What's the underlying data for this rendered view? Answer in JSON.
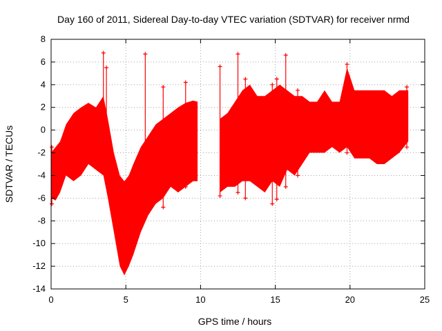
{
  "chart_data": {
    "type": "area",
    "title": "Day 160 of 2011, Sidereal Day-to-day VTEC variation (SDTVAR) for receiver nrmd",
    "xlabel": "GPS time / hours",
    "ylabel": "SDTVAR / TECUs",
    "xlim": [
      0,
      25
    ],
    "ylim": [
      -14,
      8
    ],
    "xticks": [
      0,
      5,
      10,
      15,
      20,
      25
    ],
    "yticks": [
      -14,
      -12,
      -10,
      -8,
      -6,
      -4,
      -2,
      0,
      2,
      4,
      6,
      8
    ],
    "grid": true,
    "series_color": "#ff0000",
    "series": [
      {
        "name": "segment-1",
        "envelope": [
          {
            "x": 0.0,
            "lo": -6.0,
            "hi": -2.0
          },
          {
            "x": 0.3,
            "lo": -6.2,
            "hi": -1.5
          },
          {
            "x": 0.6,
            "lo": -5.5,
            "hi": -1.0
          },
          {
            "x": 1.0,
            "lo": -4.0,
            "hi": 0.5
          },
          {
            "x": 1.5,
            "lo": -4.5,
            "hi": 1.5
          },
          {
            "x": 2.0,
            "lo": -4.0,
            "hi": 2.0
          },
          {
            "x": 2.5,
            "lo": -3.0,
            "hi": 2.4
          },
          {
            "x": 3.0,
            "lo": -3.5,
            "hi": 2.0
          },
          {
            "x": 3.5,
            "lo": -4.0,
            "hi": 3.0
          },
          {
            "x": 3.8,
            "lo": -6.0,
            "hi": 1.0
          },
          {
            "x": 4.2,
            "lo": -9.0,
            "hi": -2.0
          },
          {
            "x": 4.6,
            "lo": -12.0,
            "hi": -4.0
          },
          {
            "x": 4.9,
            "lo": -12.8,
            "hi": -4.5
          },
          {
            "x": 5.2,
            "lo": -12.0,
            "hi": -4.0
          },
          {
            "x": 5.5,
            "lo": -11.0,
            "hi": -3.0
          },
          {
            "x": 6.0,
            "lo": -9.0,
            "hi": -1.5
          },
          {
            "x": 6.5,
            "lo": -7.5,
            "hi": -0.5
          },
          {
            "x": 7.0,
            "lo": -6.5,
            "hi": 0.5
          },
          {
            "x": 7.5,
            "lo": -6.0,
            "hi": 1.0
          },
          {
            "x": 8.0,
            "lo": -5.0,
            "hi": 1.5
          },
          {
            "x": 8.5,
            "lo": -5.5,
            "hi": 2.0
          },
          {
            "x": 9.0,
            "lo": -5.0,
            "hi": 2.4
          },
          {
            "x": 9.5,
            "lo": -4.5,
            "hi": 2.6
          },
          {
            "x": 9.8,
            "lo": -4.5,
            "hi": 2.5
          }
        ]
      },
      {
        "name": "segment-2",
        "envelope": [
          {
            "x": 11.3,
            "lo": -5.5,
            "hi": 1.0
          },
          {
            "x": 11.8,
            "lo": -5.0,
            "hi": 1.5
          },
          {
            "x": 12.3,
            "lo": -5.0,
            "hi": 2.5
          },
          {
            "x": 12.8,
            "lo": -4.5,
            "hi": 3.5
          },
          {
            "x": 13.3,
            "lo": -4.5,
            "hi": 4.0
          },
          {
            "x": 13.8,
            "lo": -5.0,
            "hi": 3.0
          },
          {
            "x": 14.3,
            "lo": -5.5,
            "hi": 3.0
          },
          {
            "x": 14.8,
            "lo": -4.5,
            "hi": 3.5
          },
          {
            "x": 15.3,
            "lo": -5.0,
            "hi": 4.0
          },
          {
            "x": 15.8,
            "lo": -3.5,
            "hi": 3.5
          },
          {
            "x": 16.3,
            "lo": -4.0,
            "hi": 3.0
          },
          {
            "x": 16.8,
            "lo": -3.0,
            "hi": 3.0
          },
          {
            "x": 17.3,
            "lo": -2.0,
            "hi": 2.5
          },
          {
            "x": 17.8,
            "lo": -2.0,
            "hi": 2.5
          },
          {
            "x": 18.3,
            "lo": -2.0,
            "hi": 3.5
          },
          {
            "x": 18.8,
            "lo": -1.5,
            "hi": 2.5
          },
          {
            "x": 19.3,
            "lo": -2.0,
            "hi": 2.5
          },
          {
            "x": 19.8,
            "lo": -1.5,
            "hi": 5.5
          },
          {
            "x": 20.3,
            "lo": -2.5,
            "hi": 3.5
          },
          {
            "x": 20.8,
            "lo": -2.5,
            "hi": 3.5
          },
          {
            "x": 21.3,
            "lo": -2.5,
            "hi": 3.5
          },
          {
            "x": 21.8,
            "lo": -3.0,
            "hi": 3.5
          },
          {
            "x": 22.3,
            "lo": -3.0,
            "hi": 3.5
          },
          {
            "x": 22.8,
            "lo": -2.5,
            "hi": 3.0
          },
          {
            "x": 23.3,
            "lo": -2.0,
            "hi": 3.5
          },
          {
            "x": 23.9,
            "lo": -1.0,
            "hi": 3.5
          }
        ]
      }
    ],
    "spikes": [
      {
        "x": 0.05,
        "lo": -6.5,
        "hi": -1.5
      },
      {
        "x": 3.5,
        "lo": -2.0,
        "hi": 6.8
      },
      {
        "x": 3.7,
        "lo": -2.0,
        "hi": 5.5
      },
      {
        "x": 6.3,
        "lo": -4.0,
        "hi": 6.7
      },
      {
        "x": 7.5,
        "lo": -6.8,
        "hi": 3.8
      },
      {
        "x": 9.0,
        "lo": -5.0,
        "hi": 4.2
      },
      {
        "x": 11.3,
        "lo": -5.8,
        "hi": 5.6
      },
      {
        "x": 12.5,
        "lo": -5.5,
        "hi": 6.7
      },
      {
        "x": 13.0,
        "lo": -6.0,
        "hi": 4.5
      },
      {
        "x": 14.8,
        "lo": -6.5,
        "hi": 4.0
      },
      {
        "x": 15.1,
        "lo": -6.1,
        "hi": 4.5
      },
      {
        "x": 15.7,
        "lo": -5.0,
        "hi": 6.6
      },
      {
        "x": 16.5,
        "lo": -4.0,
        "hi": 3.5
      },
      {
        "x": 19.8,
        "lo": -2.0,
        "hi": 5.8
      },
      {
        "x": 23.8,
        "lo": -1.5,
        "hi": 3.8
      }
    ]
  }
}
